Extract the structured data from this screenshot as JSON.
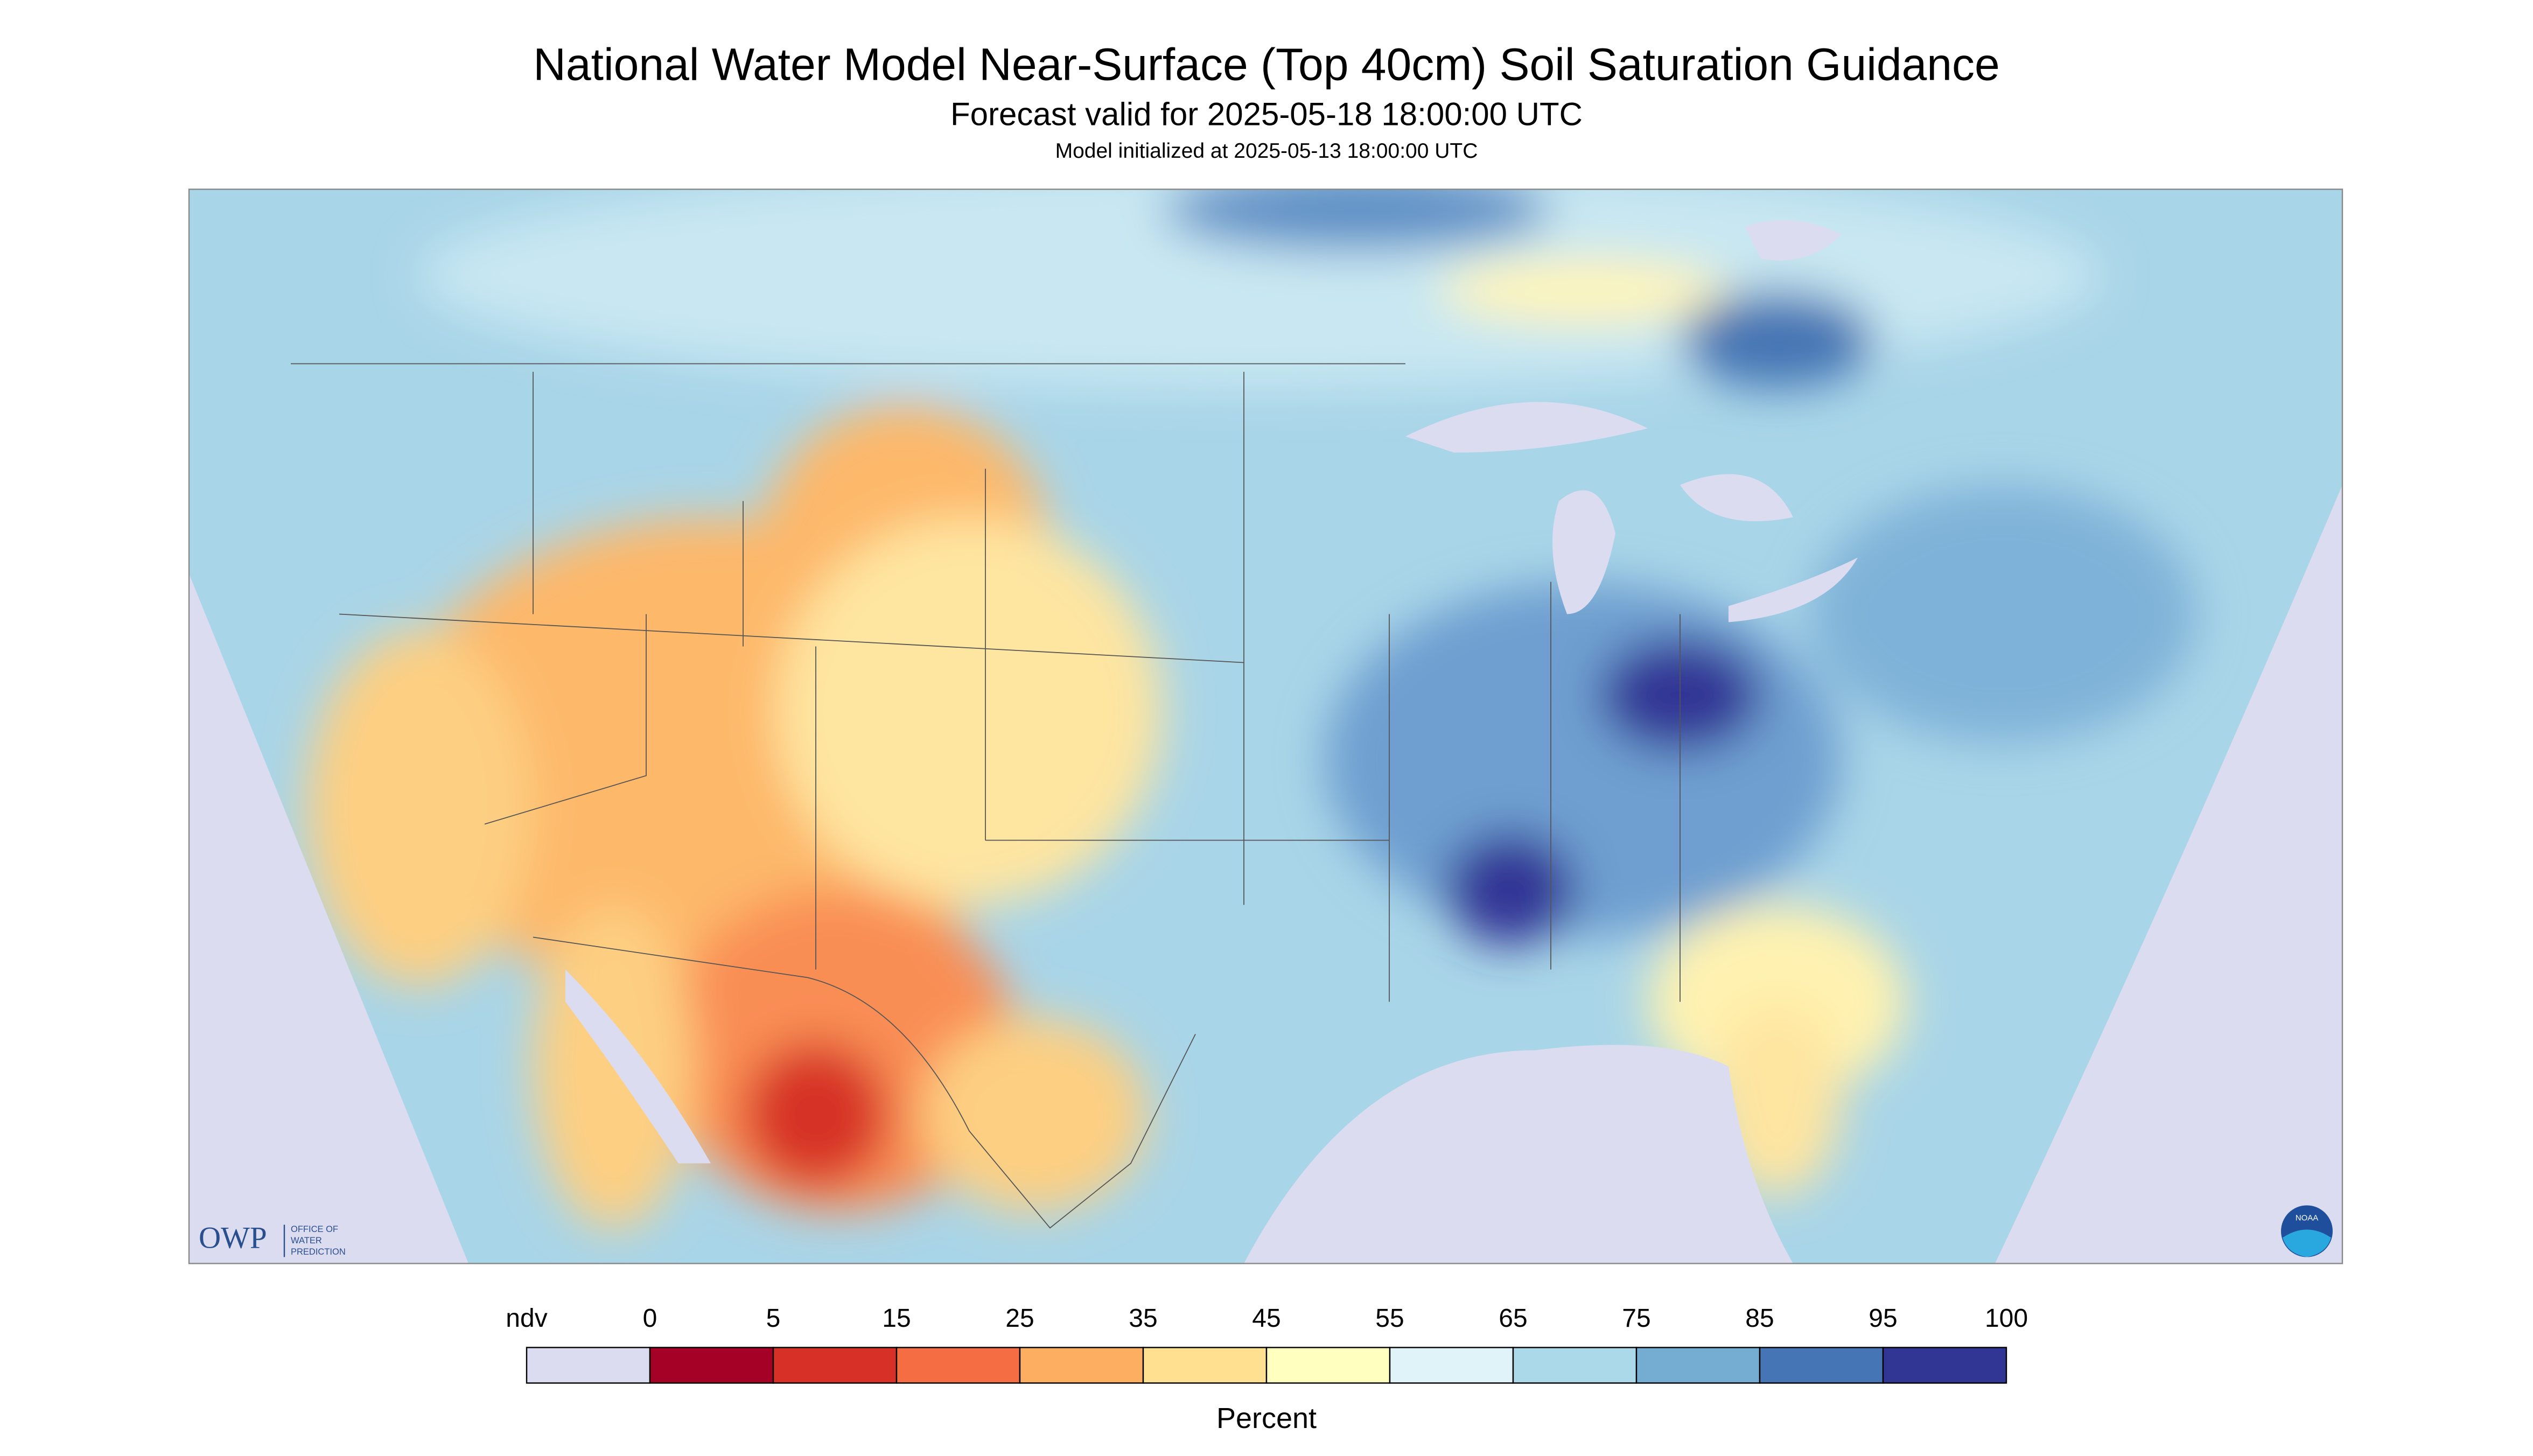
{
  "header": {
    "title": "National Water Model Near-Surface (Top 40cm) Soil Saturation Guidance",
    "subtitle": "Forecast valid for 2025-05-18 18:00:00 UTC",
    "init": "Model initialized at 2025-05-13 18:00:00 UTC"
  },
  "legend": {
    "ticks": [
      "ndv",
      "0",
      "5",
      "15",
      "25",
      "35",
      "45",
      "55",
      "65",
      "75",
      "85",
      "95",
      "100"
    ],
    "colors": [
      "#dcdcf0",
      "#a50026",
      "#d73027",
      "#f46d43",
      "#fdae61",
      "#fee090",
      "#ffffbf",
      "#e0f3f8",
      "#abd9e9",
      "#74add1",
      "#4575b4",
      "#313695"
    ],
    "unit": "Percent"
  },
  "logos": {
    "owp": "OWP",
    "owp_line1": "OFFICE OF",
    "owp_line2": "WATER",
    "owp_line3": "PREDICTION",
    "noaa": "NOAA"
  }
}
